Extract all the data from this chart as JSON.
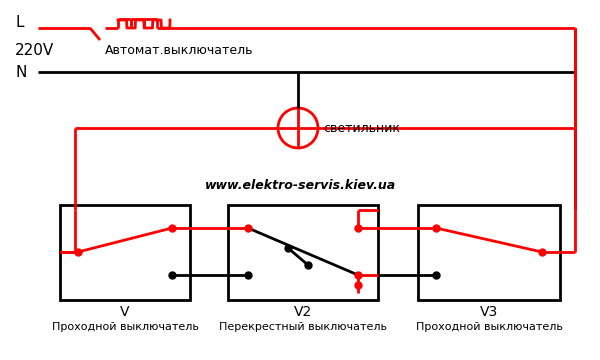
{
  "bg_color": "#ffffff",
  "red": "#ff0000",
  "black": "#000000",
  "lw": 2.0,
  "label_L": "L",
  "label_220V": "220V",
  "label_N": "N",
  "label_avtomat": "Автомат.выключатель",
  "label_svetilnik": "светильник",
  "label_V": "V",
  "label_V2": "V2",
  "label_V3": "V3",
  "label_prohodnoj": "Проходной выключатель",
  "label_perekrests": "Перекрестный выключатель",
  "website": "www.elektro-servis.kiev.ua",
  "figsize": [
    6.0,
    3.6
  ],
  "dpi": 100
}
